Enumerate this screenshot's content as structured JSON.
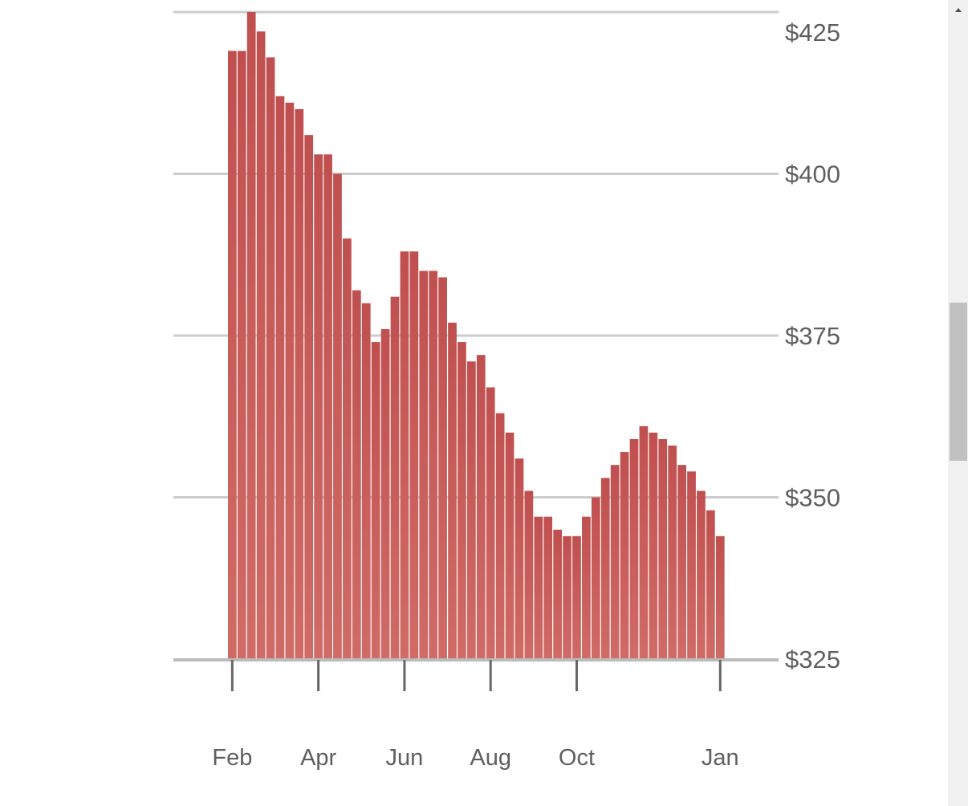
{
  "chart_data": {
    "type": "bar",
    "title": "",
    "xlabel": "",
    "ylabel": "",
    "ylim": [
      325,
      425
    ],
    "y_ticks": [
      325,
      350,
      375,
      400,
      425
    ],
    "y_tick_labels": [
      "$325",
      "$350",
      "$375",
      "$400",
      "$425"
    ],
    "x_tick_labels": [
      "Feb",
      "Apr",
      "Jun",
      "Aug",
      "Oct",
      "Jan"
    ],
    "x_tick_bar_index": [
      0,
      9,
      18,
      27,
      36,
      51
    ],
    "y_axis_position": "right",
    "grid": true,
    "colors": {
      "bar": "#c0504f",
      "bar_light": "#d06b66",
      "grid": "#cccccc",
      "axis": "#bbbbbb",
      "tick": "#666666",
      "label": "#5f5f5f"
    },
    "values": [
      419,
      419,
      425,
      422,
      418,
      412,
      411,
      410,
      406,
      403,
      403,
      400,
      390,
      382,
      380,
      374,
      376,
      381,
      388,
      388,
      385,
      385,
      384,
      377,
      374,
      371,
      372,
      367,
      363,
      360,
      356,
      351,
      347,
      347,
      345,
      344,
      344,
      347,
      350,
      353,
      355,
      357,
      359,
      361,
      360,
      359,
      358,
      355,
      354,
      351,
      348,
      344
    ]
  }
}
